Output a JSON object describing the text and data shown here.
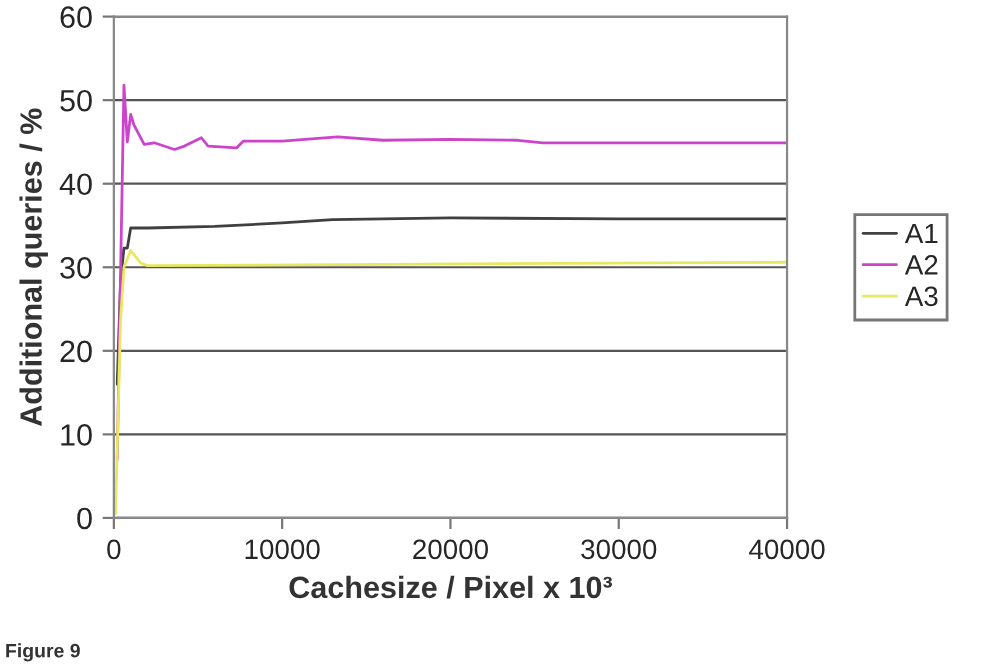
{
  "chart_data": {
    "type": "line",
    "xlabel": "Cachesize / Pixel x 10³",
    "ylabel": "Additional queries / %",
    "annotations": [
      "Figure 9"
    ],
    "xlim": [
      0,
      40000
    ],
    "ylim": [
      0,
      60
    ],
    "xticks": [
      0,
      10000,
      20000,
      30000,
      40000
    ],
    "yticks": [
      0,
      10,
      20,
      30,
      40,
      50,
      60
    ],
    "grid": "y",
    "legend": "right",
    "series": [
      {
        "name": "A1",
        "color": "#404040",
        "x": [
          200,
          400,
          600,
          800,
          1000,
          2000,
          6000,
          10000,
          13000,
          20000,
          30000,
          40000
        ],
        "values": [
          16,
          28.4,
          32.3,
          32.3,
          34.7,
          34.7,
          34.9,
          35.3,
          35.7,
          35.9,
          35.8,
          35.8
        ]
      },
      {
        "name": "A2",
        "color": "#cc44cc",
        "x": [
          200,
          600,
          800,
          1000,
          1200,
          1800,
          2400,
          3600,
          4200,
          5200,
          5600,
          7300,
          7700,
          10000,
          13300,
          16000,
          20000,
          24000,
          25500,
          40000
        ],
        "values": [
          7,
          51.8,
          45,
          48.3,
          47,
          44.7,
          44.9,
          44.1,
          44.5,
          45.5,
          44.5,
          44.3,
          45.1,
          45.1,
          45.6,
          45.2,
          45.3,
          45.2,
          44.9,
          44.9
        ]
      },
      {
        "name": "A3",
        "color": "#e8e860",
        "x": [
          100,
          400,
          600,
          1000,
          1600,
          2000,
          40000
        ],
        "values": [
          0.5,
          23.6,
          30,
          32,
          30.5,
          30.2,
          30.6
        ]
      }
    ]
  }
}
